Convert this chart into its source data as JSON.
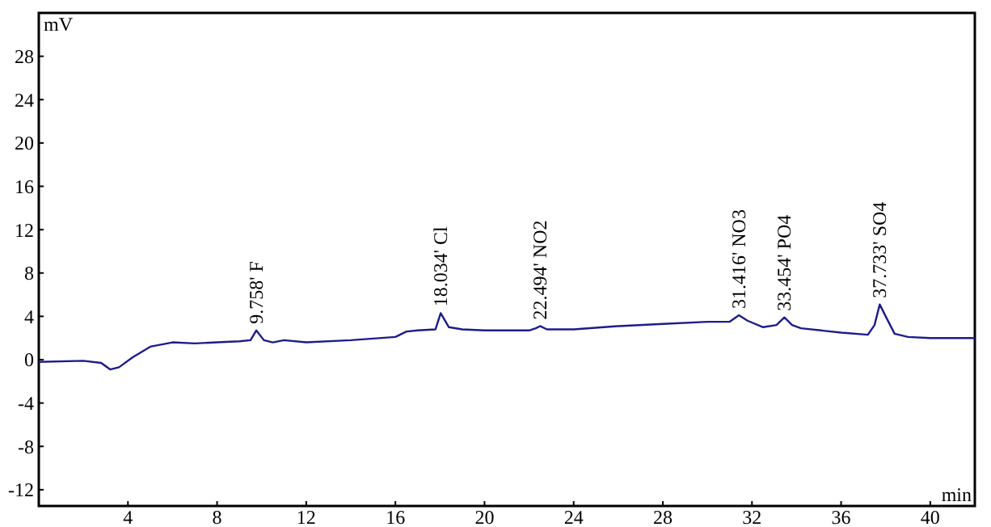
{
  "chart_data": {
    "type": "line",
    "xlabel": "min",
    "ylabel": "mV",
    "series": [
      {
        "color": "#1c1c8c",
        "x": [
          0,
          2,
          2.8,
          3.2,
          3.6,
          4.2,
          5,
          6,
          7,
          8,
          9,
          9.5,
          9.758,
          10.1,
          10.5,
          11,
          12,
          14,
          16,
          16.5,
          17,
          17.8,
          18.034,
          18.4,
          19,
          20,
          22,
          22.3,
          22.494,
          22.8,
          24,
          26,
          28,
          30,
          31,
          31.416,
          31.8,
          32.5,
          33.1,
          33.454,
          33.8,
          34.2,
          36,
          37.2,
          37.5,
          37.733,
          38,
          38.4,
          39,
          40,
          42
        ],
        "values": [
          -0.2,
          -0.1,
          -0.3,
          -0.9,
          -0.7,
          0.2,
          1.2,
          1.6,
          1.5,
          1.6,
          1.7,
          1.8,
          2.7,
          1.8,
          1.6,
          1.8,
          1.6,
          1.8,
          2.1,
          2.6,
          2.7,
          2.8,
          4.3,
          3.0,
          2.8,
          2.7,
          2.7,
          2.9,
          3.1,
          2.8,
          2.8,
          3.1,
          3.3,
          3.5,
          3.5,
          4.1,
          3.6,
          3.0,
          3.2,
          3.9,
          3.2,
          2.9,
          2.5,
          2.3,
          3.2,
          5.1,
          4.0,
          2.4,
          2.1,
          2.0,
          2.0
        ]
      }
    ],
    "xlim": [
      0,
      42
    ],
    "xticks": [
      4,
      8,
      12,
      16,
      20,
      24,
      28,
      32,
      36,
      40
    ],
    "ylim": [
      -13.5,
      32
    ],
    "yticks": [
      -12,
      -8,
      -4,
      0,
      4,
      8,
      12,
      16,
      20,
      24,
      28
    ],
    "grid": false,
    "marker": "none",
    "line_style": "solid",
    "annotations": [
      {
        "text": "9.758' F",
        "x": 9.758,
        "y": 2.7
      },
      {
        "text": "18.034' Cl",
        "x": 18.034,
        "y": 4.3
      },
      {
        "text": "22.494' NO2",
        "x": 22.494,
        "y": 3.1
      },
      {
        "text": "31.416' NO3",
        "x": 31.416,
        "y": 4.1
      },
      {
        "text": "33.454' PO4",
        "x": 33.454,
        "y": 3.9
      },
      {
        "text": "37.733' SO4",
        "x": 37.733,
        "y": 5.1
      }
    ]
  }
}
